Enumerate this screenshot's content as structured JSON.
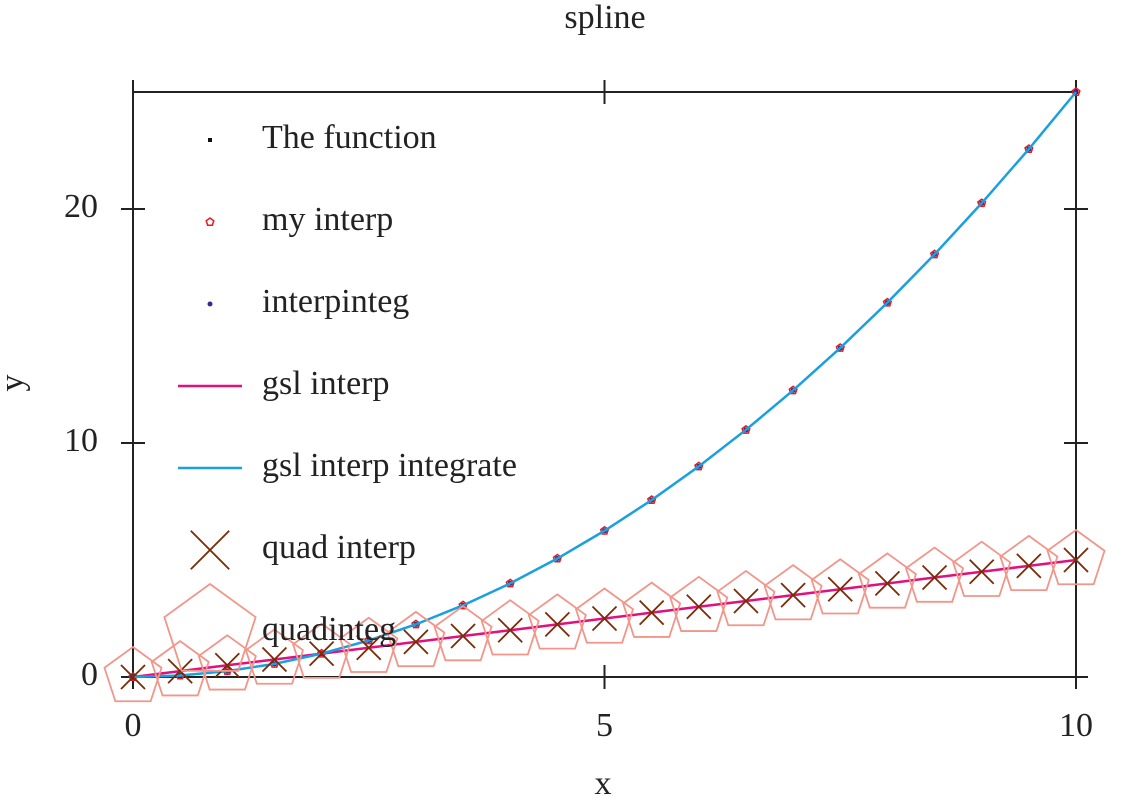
{
  "chart_data": {
    "type": "line",
    "title": "spline",
    "x_label": "x",
    "y_label": "y",
    "x": [
      0,
      0.5,
      1,
      1.5,
      2,
      2.5,
      3,
      3.5,
      4,
      4.5,
      5,
      5.5,
      6,
      6.5,
      7,
      7.5,
      8,
      8.5,
      9,
      9.5,
      10
    ],
    "xlim": [
      0,
      10
    ],
    "xticks": [
      0,
      5,
      10
    ],
    "ylim": [
      0,
      25
    ],
    "yticks": [
      0,
      10,
      20
    ],
    "series": [
      {
        "name": "The function",
        "color": "#111111",
        "marker": "square",
        "line": false,
        "values": [
          0,
          0.0625,
          0.25,
          0.5625,
          1,
          1.5625,
          2.25,
          3.0625,
          4,
          5.0625,
          6.25,
          7.5625,
          9,
          10.5625,
          12.25,
          14.0625,
          16,
          18.0625,
          20.25,
          22.5625,
          25
        ]
      },
      {
        "name": "my interp",
        "color": "#e8191f",
        "marker": "pentagon",
        "line": false,
        "values": [
          0,
          0.0625,
          0.25,
          0.5625,
          1,
          1.5625,
          2.25,
          3.0625,
          4,
          5.0625,
          6.25,
          7.5625,
          9,
          10.5625,
          12.25,
          14.0625,
          16,
          18.0625,
          20.25,
          22.5625,
          25
        ]
      },
      {
        "name": "interpinteg",
        "color": "#2b2f8a",
        "marker": "circle",
        "line": false,
        "values": [
          0,
          0.0625,
          0.25,
          0.5625,
          1,
          1.5625,
          2.25,
          3.0625,
          4,
          5.0625,
          6.25,
          7.5625,
          9,
          10.5625,
          12.25,
          14.0625,
          16,
          18.0625,
          20.25,
          22.5625,
          25
        ]
      },
      {
        "name": "gsl interp",
        "color": "#e0117f",
        "marker": "none",
        "line": true,
        "values": [
          0,
          0.25,
          0.5,
          0.75,
          1,
          1.25,
          1.5,
          1.75,
          2,
          2.25,
          2.5,
          2.75,
          3,
          3.25,
          3.5,
          3.75,
          4,
          4.25,
          4.5,
          4.75,
          5
        ]
      },
      {
        "name": "gsl interp integrate",
        "color": "#1aa0e0",
        "marker": "none",
        "line": true,
        "values": [
          0,
          0.0625,
          0.25,
          0.5625,
          1,
          1.5625,
          2.25,
          3.0625,
          4,
          5.0625,
          6.25,
          7.5625,
          9,
          10.5625,
          12.25,
          14.0625,
          16,
          18.0625,
          20.25,
          22.5625,
          25
        ]
      },
      {
        "name": "quad interp",
        "color": "#7a2a05",
        "marker": "cross",
        "line": false,
        "values": [
          0,
          0.25,
          0.5,
          0.75,
          1,
          1.25,
          1.5,
          1.75,
          2,
          2.25,
          2.5,
          2.75,
          3,
          3.25,
          3.5,
          3.75,
          4,
          4.25,
          4.5,
          4.75,
          5
        ]
      },
      {
        "name": "quadinteg",
        "color": "#f2958a",
        "marker": "big-pentagon",
        "line": false,
        "values": [
          0,
          0.25,
          0.5,
          0.75,
          1,
          1.25,
          1.5,
          1.75,
          2,
          2.25,
          2.5,
          2.75,
          3,
          3.25,
          3.5,
          3.75,
          4,
          4.25,
          4.5,
          4.75,
          5
        ]
      }
    ]
  }
}
